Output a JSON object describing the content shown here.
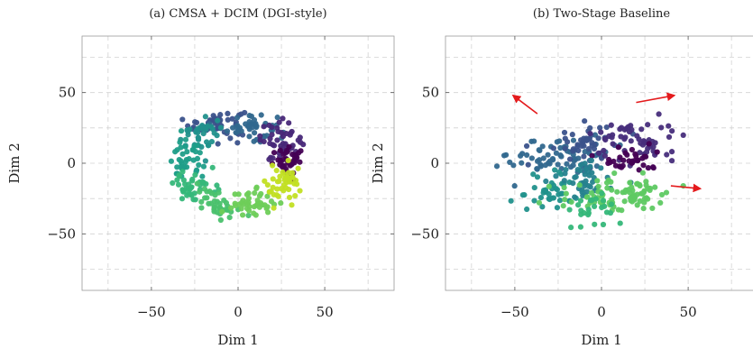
{
  "chart_data": [
    {
      "type": "scatter",
      "title": "(a) CMSA + DCIM (DGI-style)",
      "xlabel": "Dim 1",
      "ylabel": "Dim 2",
      "xlim": [
        -90,
        90
      ],
      "ylim": [
        -90,
        90
      ],
      "grid": true,
      "xticks": [
        {
          "value": -50,
          "label": "−50"
        },
        {
          "value": 0,
          "label": "0"
        },
        {
          "value": 50,
          "label": "50"
        }
      ],
      "yticks": [
        {
          "value": 50,
          "label": "50"
        },
        {
          "value": 0,
          "label": "0"
        },
        {
          "value": -50,
          "label": "−50"
        }
      ],
      "colormap": "viridis",
      "clusters": [
        {
          "center": [
            -12,
            28
          ],
          "spread": [
            8,
            5
          ],
          "n": 55,
          "color": "#3b528b"
        },
        {
          "center": [
            8,
            26
          ],
          "spread": [
            7,
            5
          ],
          "n": 45,
          "color": "#31688e"
        },
        {
          "center": [
            -22,
            20
          ],
          "spread": [
            7,
            6
          ],
          "n": 35,
          "color": "#21918c"
        },
        {
          "center": [
            25,
            16
          ],
          "spread": [
            6,
            7
          ],
          "n": 45,
          "color": "#482878"
        },
        {
          "center": [
            30,
            0
          ],
          "spread": [
            5,
            5
          ],
          "n": 40,
          "color": "#440154"
        },
        {
          "center": [
            -30,
            2
          ],
          "spread": [
            5,
            7
          ],
          "n": 40,
          "color": "#1f9e89"
        },
        {
          "center": [
            -25,
            -16
          ],
          "spread": [
            6,
            6
          ],
          "n": 40,
          "color": "#35b779"
        },
        {
          "center": [
            -12,
            -28
          ],
          "spread": [
            6,
            5
          ],
          "n": 40,
          "color": "#4ac16d"
        },
        {
          "center": [
            8,
            -28
          ],
          "spread": [
            6,
            5
          ],
          "n": 45,
          "color": "#6ece58"
        },
        {
          "center": [
            27,
            -16
          ],
          "spread": [
            6,
            7
          ],
          "n": 45,
          "color": "#c2df23"
        }
      ]
    },
    {
      "type": "scatter",
      "title": "(b) Two-Stage Baseline",
      "xlabel": "Dim 1",
      "ylabel": "Dim 2",
      "xlim": [
        -90,
        90
      ],
      "ylim": [
        -90,
        90
      ],
      "grid": true,
      "xticks": [
        {
          "value": -50,
          "label": "−50"
        },
        {
          "value": 0,
          "label": "0"
        },
        {
          "value": 50,
          "label": "50"
        }
      ],
      "yticks": [
        {
          "value": 50,
          "label": "50"
        },
        {
          "value": 0,
          "label": "0"
        },
        {
          "value": -50,
          "label": "−50"
        }
      ],
      "colormap": "viridis",
      "clusters": [
        {
          "center": [
            -25,
            5
          ],
          "spread": [
            14,
            7
          ],
          "n": 70,
          "color": "#31688e"
        },
        {
          "center": [
            -10,
            15
          ],
          "spread": [
            10,
            7
          ],
          "n": 45,
          "color": "#3b528b"
        },
        {
          "center": [
            20,
            15
          ],
          "spread": [
            12,
            8
          ],
          "n": 60,
          "color": "#472d7b"
        },
        {
          "center": [
            15,
            3
          ],
          "spread": [
            10,
            4
          ],
          "n": 35,
          "color": "#440154"
        },
        {
          "center": [
            -30,
            -20
          ],
          "spread": [
            10,
            8
          ],
          "n": 40,
          "color": "#21918c"
        },
        {
          "center": [
            -10,
            -12
          ],
          "spread": [
            10,
            7
          ],
          "n": 40,
          "color": "#26828e"
        },
        {
          "center": [
            10,
            -22
          ],
          "spread": [
            15,
            6
          ],
          "n": 85,
          "color": "#5ec962"
        },
        {
          "center": [
            -5,
            -33
          ],
          "spread": [
            8,
            5
          ],
          "n": 25,
          "color": "#35b779"
        }
      ],
      "arrows": [
        {
          "from": [
            -37,
            35
          ],
          "to": [
            -51,
            48
          ],
          "color": "#e41a1c"
        },
        {
          "from": [
            20,
            43
          ],
          "to": [
            42,
            48
          ],
          "color": "#e41a1c"
        },
        {
          "from": [
            40,
            -16
          ],
          "to": [
            57,
            -18
          ],
          "color": "#e41a1c"
        }
      ]
    }
  ]
}
